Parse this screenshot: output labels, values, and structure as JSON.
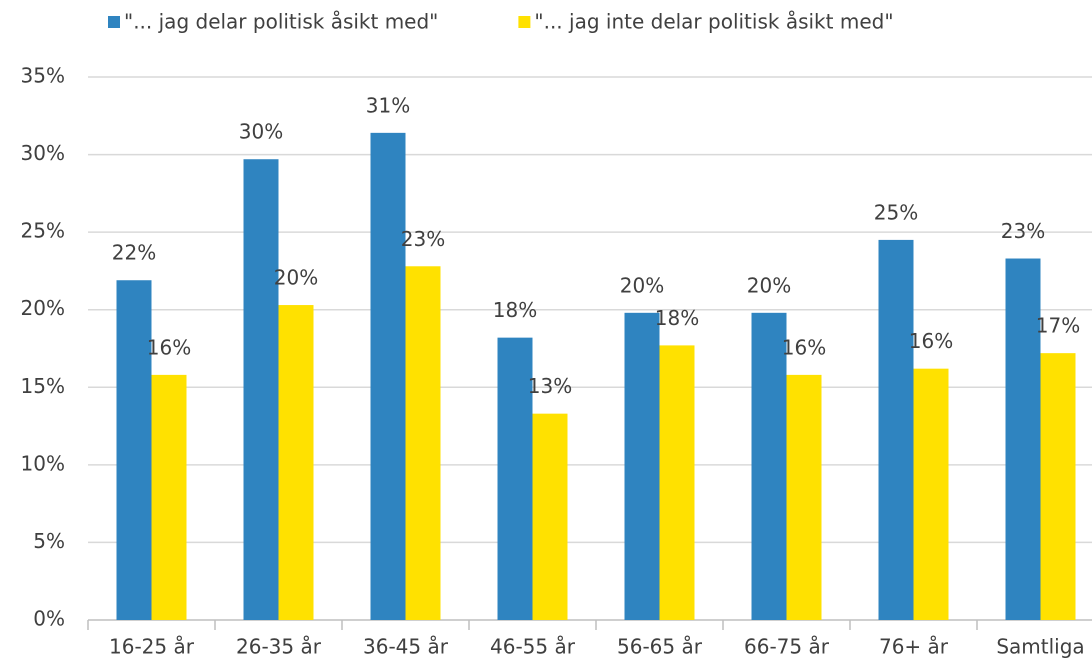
{
  "chart_data": {
    "type": "bar",
    "categories": [
      "16-25 år",
      "26-35 år",
      "36-45 år",
      "46-55 år",
      "56-65 år",
      "66-75 år",
      "76+ år",
      "Samtliga"
    ],
    "series": [
      {
        "name": "\"... jag delar politisk åsikt med\"",
        "color": "#2f84c0",
        "values": [
          21.9,
          29.7,
          31.4,
          18.2,
          19.8,
          19.8,
          24.5,
          23.3
        ],
        "value_labels": [
          "22%",
          "30%",
          "31%",
          "18%",
          "20%",
          "20%",
          "25%",
          "23%"
        ]
      },
      {
        "name": "\"... jag inte delar politisk åsikt med\"",
        "color": "#ffe100",
        "values": [
          15.8,
          20.3,
          22.8,
          13.3,
          17.7,
          15.8,
          16.2,
          17.2
        ],
        "value_labels": [
          "16%",
          "20%",
          "23%",
          "13%",
          "18%",
          "16%",
          "16%",
          "17%"
        ]
      }
    ],
    "ylim": [
      0,
      35
    ],
    "yticks": [
      {
        "value": 0,
        "label": "0%"
      },
      {
        "value": 5,
        "label": "5%"
      },
      {
        "value": 10,
        "label": "10%"
      },
      {
        "value": 15,
        "label": "15%"
      },
      {
        "value": 20,
        "label": "20%"
      },
      {
        "value": 25,
        "label": "25%"
      },
      {
        "value": 30,
        "label": "30%"
      },
      {
        "value": 35,
        "label": "35%"
      }
    ],
    "grid": true,
    "legend": "top"
  }
}
